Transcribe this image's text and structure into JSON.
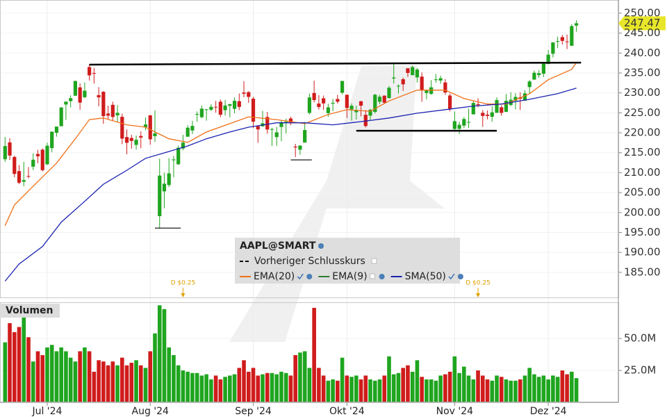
{
  "chart_data": {
    "type": "candlestick",
    "title": "AAPL@SMART",
    "previous_close_label": "Vorheriger Schlusskurs",
    "up_color": "#1fa51f",
    "down_color": "#d01c1c",
    "categories": [
      null,
      null,
      null,
      null,
      null,
      null,
      null,
      null,
      null,
      "Jul '24",
      null,
      null,
      null,
      null,
      null,
      null,
      null,
      null,
      null,
      null,
      null,
      null,
      null,
      null,
      null,
      null,
      null,
      null,
      null,
      null,
      null,
      "Aug '24",
      null,
      null,
      null,
      null,
      null,
      null,
      null,
      null,
      null,
      null,
      null,
      null,
      null,
      null,
      null,
      null,
      null,
      null,
      null,
      null,
      null,
      "Sep '24",
      null,
      null,
      null,
      null,
      null,
      null,
      null,
      null,
      null,
      null,
      null,
      null,
      null,
      null,
      null,
      null,
      null,
      null,
      null,
      "Okt '24",
      null,
      null,
      null,
      null,
      null,
      null,
      null,
      null,
      null,
      null,
      null,
      null,
      null,
      null,
      null,
      null,
      null,
      null,
      null,
      null,
      null,
      null,
      "Nov '24",
      null,
      null,
      null,
      null,
      null,
      null,
      null,
      null,
      null,
      null,
      null,
      null,
      null,
      null,
      null,
      null,
      null,
      null,
      null,
      "Dez '24",
      null,
      null,
      null,
      null,
      null,
      null
    ],
    "open": [
      213.37,
      217.59,
      213.93,
      210.39,
      207.72,
      209.15,
      211.5,
      214.69,
      215.77,
      212.09,
      216.15,
      220.0,
      221.65,
      227.09,
      227.93,
      229.3,
      231.39,
      228.92,
      236.48,
      235.0,
      229.45,
      230.28,
      224.82,
      227.01,
      224.37,
      224.0,
      218.93,
      218.7,
      216.96,
      219.19,
      221.44,
      224.37,
      219.15,
      199.09,
      205.3,
      206.9,
      213.11,
      212.1,
      216.07,
      219.01,
      220.57,
      224.6,
      223.92,
      225.72,
      225.77,
      226.52,
      227.79,
      225.66,
      226.76,
      226.0,
      227.92,
      230.1,
      230.19,
      228.55,
      221.66,
      221.63,
      223.95,
      220.82,
      218.92,
      221.46,
      222.5,
      223.58,
      216.54,
      215.75,
      217.55,
      224.99,
      229.97,
      227.34,
      228.65,
      224.93,
      227.3,
      228.46,
      230.04,
      229.52,
      225.89,
      225.14,
      227.9,
      224.5,
      224.3,
      225.23,
      227.78,
      229.3,
      228.7,
      233.61,
      231.6,
      233.43,
      236.18,
      234.45,
      233.89,
      234.08,
      229.98,
      229.74,
      233.32,
      233.1,
      232.61,
      229.34,
      220.97,
      220.99,
      221.8,
      222.61,
      224.63,
      227.17,
      225.0,
      224.55,
      224.01,
      225.02,
      226.4,
      225.25,
      226.98,
      228.06,
      228.88,
      228.06,
      231.46,
      233.33,
      234.47,
      234.81,
      237.27,
      239.81,
      242.87,
      243.99,
      242.91,
      241.83,
      246.89
    ],
    "high": [
      218.95,
      218.63,
      214.24,
      211.89,
      212.7,
      211.38,
      214.86,
      215.74,
      216.07,
      217.51,
      220.38,
      221.55,
      226.45,
      227.85,
      229.4,
      233.08,
      232.39,
      232.64,
      237.23,
      236.27,
      231.46,
      230.44,
      226.8,
      227.78,
      226.94,
      224.8,
      220.85,
      219.49,
      219.3,
      220.33,
      223.82,
      224.48,
      225.6,
      213.5,
      209.99,
      213.64,
      214.2,
      216.78,
      219.51,
      221.89,
      223.03,
      225.35,
      226.83,
      225.99,
      227.17,
      227.98,
      228.34,
      228.22,
      227.28,
      228.85,
      229.86,
      232.92,
      230.4,
      229.0,
      221.78,
      225.48,
      225.24,
      221.27,
      221.48,
      223.09,
      223.55,
      224.04,
      217.22,
      216.9,
      222.71,
      229.82,
      233.09,
      229.45,
      229.35,
      227.29,
      228.5,
      229.52,
      233.0,
      229.65,
      227.37,
      226.81,
      228.0,
      225.69,
      225.98,
      229.75,
      229.5,
      229.41,
      231.73,
      237.49,
      232.12,
      233.85,
      236.18,
      236.85,
      236.22,
      235.14,
      230.82,
      233.22,
      234.73,
      234.33,
      233.47,
      229.83,
      225.35,
      222.79,
      223.95,
      226.07,
      227.88,
      228.66,
      225.7,
      225.59,
      226.65,
      228.87,
      226.92,
      229.74,
      230.16,
      229.93,
      230.16,
      230.72,
      233.25,
      235.57,
      235.69,
      237.81,
      240.79,
      242.76,
      244.11,
      244.54,
      244.63,
      247.24,
      248.21
    ],
    "low": [
      212.72,
      213.19,
      208.85,
      207.11,
      206.59,
      208.61,
      210.64,
      212.35,
      210.3,
      211.92,
      215.1,
      219.03,
      221.65,
      223.25,
      226.37,
      229.25,
      225.77,
      228.68,
      233.09,
      232.33,
      226.64,
      222.27,
      223.28,
      223.09,
      222.68,
      217.13,
      214.62,
      216.01,
      215.75,
      216.12,
      220.63,
      217.02,
      217.71,
      196.0,
      201.07,
      206.39,
      208.83,
      211.97,
      215.6,
      219.01,
      219.7,
      222.76,
      223.65,
      223.04,
      225.45,
      225.05,
      223.9,
      224.33,
      223.89,
      224.89,
      225.68,
      228.88,
      227.48,
      221.17,
      217.48,
      221.52,
      219.77,
      216.71,
      216.73,
      217.89,
      219.82,
      221.91,
      213.92,
      214.5,
      217.54,
      224.63,
      227.62,
      225.81,
      225.73,
      224.02,
      225.41,
      227.3,
      229.65,
      223.74,
      223.02,
      223.32,
      224.13,
      221.33,
      223.25,
      224.83,
      227.17,
      227.34,
      228.6,
      232.37,
      229.84,
      230.52,
      234.01,
      234.45,
      232.6,
      227.76,
      228.41,
      229.57,
      232.55,
      232.32,
      229.55,
      225.37,
      220.27,
      219.71,
      221.14,
      221.19,
      224.57,
      226.41,
      221.5,
      223.36,
      222.76,
      225.0,
      224.27,
      225.17,
      226.66,
      225.89,
      225.71,
      228.06,
      229.74,
      233.33,
      233.81,
      233.97,
      237.16,
      238.9,
      241.25,
      242.13,
      241.0,
      241.75,
      245.34
    ],
    "close": [
      216.67,
      214.29,
      209.68,
      207.49,
      208.14,
      209.07,
      213.25,
      214.1,
      210.62,
      216.75,
      220.27,
      221.55,
      226.34,
      227.82,
      228.68,
      232.98,
      227.57,
      230.54,
      234.4,
      234.82,
      228.88,
      224.18,
      224.31,
      223.96,
      225.01,
      218.54,
      217.49,
      217.96,
      218.24,
      218.8,
      222.08,
      218.36,
      219.86,
      209.27,
      207.23,
      209.82,
      213.31,
      216.24,
      217.53,
      221.27,
      221.72,
      224.72,
      226.05,
      225.89,
      226.51,
      226.4,
      224.53,
      226.84,
      227.18,
      228.03,
      226.49,
      229.79,
      229.0,
      222.77,
      220.85,
      222.38,
      220.82,
      220.91,
      220.11,
      222.66,
      222.77,
      222.5,
      216.32,
      216.79,
      220.69,
      228.87,
      228.2,
      226.47,
      227.37,
      226.37,
      227.52,
      227.79,
      233.0,
      226.21,
      226.78,
      225.67,
      226.8,
      221.69,
      225.77,
      229.54,
      229.04,
      227.55,
      231.3,
      233.85,
      231.78,
      232.15,
      235.0,
      236.48,
      235.86,
      230.76,
      230.57,
      231.41,
      233.4,
      233.67,
      230.1,
      225.91,
      222.91,
      222.01,
      223.45,
      222.72,
      227.48,
      226.96,
      224.23,
      224.23,
      225.12,
      228.22,
      225.0,
      228.02,
      228.28,
      229.0,
      228.52,
      229.87,
      232.87,
      235.06,
      234.93,
      237.33,
      239.59,
      242.65,
      243.01,
      243.04,
      242.84,
      246.75,
      247.47
    ],
    "ylim": [
      178.7,
      253.3
    ],
    "yticks": [
      {
        "value": 185,
        "label": "185.00"
      },
      {
        "value": 190,
        "label": "190.00"
      },
      {
        "value": 195,
        "label": "195.00"
      },
      {
        "value": 200,
        "label": "200.00"
      },
      {
        "value": 205,
        "label": "205.00"
      },
      {
        "value": 210,
        "label": "210.00"
      },
      {
        "value": 215,
        "label": "215.00"
      },
      {
        "value": 220,
        "label": "220.00"
      },
      {
        "value": 225,
        "label": "225.00"
      },
      {
        "value": 230,
        "label": "230.00"
      },
      {
        "value": 235,
        "label": "235.00"
      },
      {
        "value": 240,
        "label": "240.00"
      },
      {
        "value": 245,
        "label": "245.00"
      },
      {
        "value": 250,
        "label": "250.00"
      }
    ],
    "indicators": [
      {
        "name": "EMA(20)",
        "color": "#f07018",
        "x": [
          0,
          2,
          6,
          11,
          15,
          18,
          21,
          26,
          30,
          35,
          39,
          43,
          48,
          52,
          58,
          64,
          69,
          73,
          78,
          82,
          88,
          94,
          98,
          103,
          107,
          112,
          116,
          121,
          122
        ],
        "values": [
          196.7,
          201.9,
          206.6,
          212.4,
          218.5,
          223.3,
          223.7,
          222.0,
          221.4,
          218.5,
          217.6,
          220.2,
          222.3,
          224.0,
          223.3,
          222.3,
          224.6,
          225.8,
          225.4,
          228.0,
          230.7,
          230.7,
          228.6,
          227.2,
          227.2,
          229.8,
          233.3,
          235.9,
          237.6
        ]
      },
      {
        "name": "EMA(9)",
        "color": "#2e7d32",
        "shown": false
      },
      {
        "name": "SMA(50)",
        "color": "#1a22b0",
        "x": [
          0,
          3,
          8,
          12,
          17,
          21,
          26,
          30,
          35,
          39,
          43,
          48,
          52,
          58,
          64,
          70,
          76,
          82,
          88,
          94,
          100,
          106,
          112,
          118,
          122
        ],
        "values": [
          182.8,
          187.1,
          191.5,
          197.6,
          202.8,
          207.1,
          210.6,
          213.6,
          215.3,
          216.7,
          218.5,
          220.2,
          221.4,
          222.5,
          222.5,
          222.0,
          222.8,
          223.7,
          224.9,
          225.8,
          226.7,
          227.2,
          228.4,
          229.8,
          231.2
        ]
      }
    ],
    "trendlines": [
      {
        "x": [
          18,
          123
        ],
        "values": [
          237.1,
          237.6
        ]
      },
      {
        "x": [
          75,
          105
        ],
        "values": [
          220.5,
          220.5
        ]
      },
      {
        "x": [
          32,
          37.5
        ],
        "values": [
          196.1,
          196.1
        ]
      },
      {
        "x": [
          61,
          65.5
        ],
        "values": [
          213.2,
          213.2
        ]
      }
    ],
    "dividends": [
      {
        "index": 38,
        "label": "D $0.25"
      },
      {
        "index": 101,
        "label": "D $0.25"
      }
    ],
    "volume": {
      "label": "Volumen",
      "values": [
        47,
        62,
        55,
        59,
        67,
        51,
        32,
        40,
        37,
        43,
        45,
        40,
        43,
        40,
        35,
        32,
        40,
        43,
        40,
        24,
        33,
        32,
        29,
        32,
        29,
        35,
        29,
        31,
        33,
        29,
        27,
        40,
        54,
        76,
        73,
        43,
        37,
        29,
        25,
        24,
        23,
        23,
        21,
        22,
        18,
        21,
        18,
        20,
        21,
        22,
        27,
        33,
        24,
        27,
        21,
        22,
        23,
        23,
        22,
        24,
        23,
        21,
        37,
        39,
        40,
        27,
        74,
        27,
        21,
        17,
        18,
        17,
        35,
        21,
        20,
        21,
        18,
        21,
        18,
        17,
        18,
        21,
        36,
        22,
        23,
        27,
        29,
        24,
        33,
        20,
        18,
        18,
        17,
        21,
        22,
        24,
        36,
        23,
        28,
        21,
        18,
        25,
        21,
        18,
        17,
        21,
        20,
        18,
        17,
        17,
        18,
        21,
        27,
        22,
        20,
        21,
        18,
        21,
        20,
        25,
        22,
        24,
        19
      ],
      "ylim": [
        0,
        78.3
      ],
      "yticks": [
        {
          "value": 25,
          "label": "25.0M"
        },
        {
          "value": 50,
          "label": "50.0M"
        }
      ]
    }
  }
}
